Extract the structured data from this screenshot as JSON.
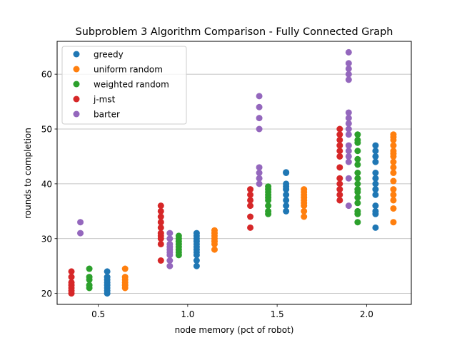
{
  "chart_data": {
    "type": "scatter",
    "title": "Subproblem 3 Algorithm Comparison - Fully Connected Graph",
    "xlabel": "node memory (pct of robot)",
    "ylabel": "rounds to completion",
    "xlim": [
      0.27,
      2.25
    ],
    "ylim": [
      18,
      66
    ],
    "xticks": [
      0.5,
      1.0,
      1.5,
      2.0
    ],
    "xtick_labels": [
      "0.5",
      "1.0",
      "1.5",
      "2.0"
    ],
    "yticks": [
      20,
      30,
      40,
      50,
      60
    ],
    "ytick_labels": [
      "20",
      "30",
      "40",
      "50",
      "60"
    ],
    "grid": "horizontal",
    "legend_position": "top-left",
    "series": [
      {
        "name": "greedy",
        "color": "#1f77b4",
        "points": [
          [
            0.55,
            20
          ],
          [
            0.55,
            20.5
          ],
          [
            0.55,
            21
          ],
          [
            0.55,
            21.5
          ],
          [
            0.55,
            22
          ],
          [
            0.55,
            22.5
          ],
          [
            0.55,
            23
          ],
          [
            0.55,
            24
          ],
          [
            1.05,
            25
          ],
          [
            1.05,
            26
          ],
          [
            1.05,
            27
          ],
          [
            1.05,
            27.5
          ],
          [
            1.05,
            28
          ],
          [
            1.05,
            28.5
          ],
          [
            1.05,
            29
          ],
          [
            1.05,
            29.5
          ],
          [
            1.05,
            30
          ],
          [
            1.05,
            30.5
          ],
          [
            1.05,
            31
          ],
          [
            1.55,
            35
          ],
          [
            1.55,
            36
          ],
          [
            1.55,
            37
          ],
          [
            1.55,
            38
          ],
          [
            1.55,
            39
          ],
          [
            1.55,
            39.5
          ],
          [
            1.55,
            40
          ],
          [
            1.55,
            42
          ],
          [
            1.55,
            42.1
          ],
          [
            2.05,
            32
          ],
          [
            2.05,
            34.5
          ],
          [
            2.05,
            35
          ],
          [
            2.05,
            36
          ],
          [
            2.05,
            38
          ],
          [
            2.05,
            39
          ],
          [
            2.05,
            40
          ],
          [
            2.05,
            41
          ],
          [
            2.05,
            42
          ],
          [
            2.05,
            44
          ],
          [
            2.05,
            45
          ],
          [
            2.05,
            46
          ],
          [
            2.05,
            47
          ]
        ]
      },
      {
        "name": "uniform random",
        "color": "#ff7f0e",
        "points": [
          [
            0.65,
            21
          ],
          [
            0.65,
            21.5
          ],
          [
            0.65,
            22
          ],
          [
            0.65,
            22.5
          ],
          [
            0.65,
            23
          ],
          [
            0.65,
            24.5
          ],
          [
            1.15,
            28
          ],
          [
            1.15,
            29
          ],
          [
            1.15,
            29.5
          ],
          [
            1.15,
            30
          ],
          [
            1.15,
            30.5
          ],
          [
            1.15,
            31
          ],
          [
            1.15,
            31.5
          ],
          [
            1.65,
            34
          ],
          [
            1.65,
            35
          ],
          [
            1.65,
            36
          ],
          [
            1.65,
            36.5
          ],
          [
            1.65,
            37
          ],
          [
            1.65,
            37.5
          ],
          [
            1.65,
            38
          ],
          [
            1.65,
            38.5
          ],
          [
            1.65,
            39
          ],
          [
            2.15,
            33
          ],
          [
            2.15,
            35.5
          ],
          [
            2.15,
            37
          ],
          [
            2.15,
            38
          ],
          [
            2.15,
            39
          ],
          [
            2.15,
            40.5
          ],
          [
            2.15,
            42
          ],
          [
            2.15,
            43
          ],
          [
            2.15,
            44
          ],
          [
            2.15,
            45
          ],
          [
            2.15,
            45.5
          ],
          [
            2.15,
            46
          ],
          [
            2.15,
            47
          ],
          [
            2.15,
            48
          ],
          [
            2.15,
            48.5
          ],
          [
            2.15,
            49
          ]
        ]
      },
      {
        "name": "weighted random",
        "color": "#2ca02c",
        "points": [
          [
            0.45,
            21
          ],
          [
            0.45,
            21.5
          ],
          [
            0.45,
            22.5
          ],
          [
            0.45,
            23
          ],
          [
            0.45,
            24.5
          ],
          [
            0.95,
            27
          ],
          [
            0.95,
            27.5
          ],
          [
            0.95,
            28
          ],
          [
            0.95,
            28.5
          ],
          [
            0.95,
            29
          ],
          [
            0.95,
            29.5
          ],
          [
            0.95,
            30
          ],
          [
            0.95,
            30.5
          ],
          [
            1.45,
            34.5
          ],
          [
            1.45,
            35
          ],
          [
            1.45,
            36
          ],
          [
            1.45,
            37
          ],
          [
            1.45,
            37.5
          ],
          [
            1.45,
            38
          ],
          [
            1.45,
            38.5
          ],
          [
            1.45,
            39
          ],
          [
            1.45,
            39.5
          ],
          [
            1.95,
            33
          ],
          [
            1.95,
            34.5
          ],
          [
            1.95,
            35
          ],
          [
            1.95,
            36.5
          ],
          [
            1.95,
            37.5
          ],
          [
            1.95,
            38.5
          ],
          [
            1.95,
            39
          ],
          [
            1.95,
            40
          ],
          [
            1.95,
            41
          ],
          [
            1.95,
            42
          ],
          [
            1.95,
            43.5
          ],
          [
            1.95,
            44.5
          ],
          [
            1.95,
            46
          ],
          [
            1.95,
            47.5
          ],
          [
            1.95,
            48
          ],
          [
            1.95,
            49
          ]
        ]
      },
      {
        "name": "j-mst",
        "color": "#d62728",
        "points": [
          [
            0.35,
            20
          ],
          [
            0.35,
            20.5
          ],
          [
            0.35,
            21
          ],
          [
            0.35,
            21.5
          ],
          [
            0.35,
            22
          ],
          [
            0.35,
            23
          ],
          [
            0.35,
            24
          ],
          [
            0.85,
            26
          ],
          [
            0.85,
            29
          ],
          [
            0.85,
            30
          ],
          [
            0.85,
            30.5
          ],
          [
            0.85,
            31
          ],
          [
            0.85,
            32
          ],
          [
            0.85,
            33
          ],
          [
            0.85,
            34
          ],
          [
            0.85,
            35
          ],
          [
            0.85,
            36
          ],
          [
            1.35,
            32
          ],
          [
            1.35,
            34
          ],
          [
            1.35,
            36
          ],
          [
            1.35,
            37
          ],
          [
            1.35,
            38
          ],
          [
            1.35,
            39
          ],
          [
            1.85,
            37
          ],
          [
            1.85,
            38
          ],
          [
            1.85,
            39
          ],
          [
            1.85,
            40
          ],
          [
            1.85,
            41
          ],
          [
            1.85,
            43
          ],
          [
            1.85,
            45
          ],
          [
            1.85,
            46
          ],
          [
            1.85,
            47
          ],
          [
            1.85,
            48
          ],
          [
            1.85,
            49
          ],
          [
            1.85,
            50
          ]
        ]
      },
      {
        "name": "barter",
        "color": "#9467bd",
        "points": [
          [
            0.4,
            31
          ],
          [
            0.4,
            33
          ],
          [
            0.9,
            25
          ],
          [
            0.9,
            26
          ],
          [
            0.9,
            27
          ],
          [
            0.9,
            27.5
          ],
          [
            0.9,
            28
          ],
          [
            0.9,
            28.5
          ],
          [
            0.9,
            29
          ],
          [
            0.9,
            30
          ],
          [
            0.9,
            31
          ],
          [
            1.4,
            40
          ],
          [
            1.4,
            41
          ],
          [
            1.4,
            42
          ],
          [
            1.4,
            43
          ],
          [
            1.4,
            50
          ],
          [
            1.4,
            52
          ],
          [
            1.4,
            54
          ],
          [
            1.4,
            56
          ],
          [
            1.9,
            36
          ],
          [
            1.9,
            41
          ],
          [
            1.9,
            44
          ],
          [
            1.9,
            45
          ],
          [
            1.9,
            46
          ],
          [
            1.9,
            47
          ],
          [
            1.9,
            49
          ],
          [
            1.9,
            50
          ],
          [
            1.9,
            51
          ],
          [
            1.9,
            52
          ],
          [
            1.9,
            53
          ],
          [
            1.9,
            59
          ],
          [
            1.9,
            60
          ],
          [
            1.9,
            61
          ],
          [
            1.9,
            62
          ],
          [
            1.9,
            64
          ]
        ]
      }
    ]
  }
}
